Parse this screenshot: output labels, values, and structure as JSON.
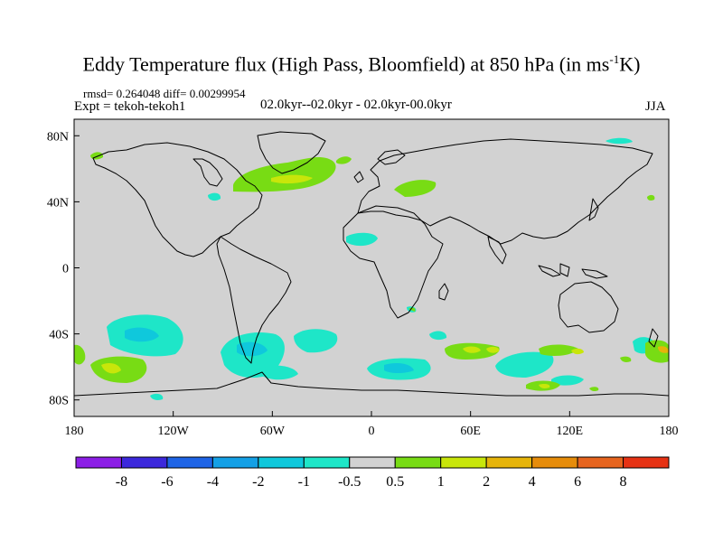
{
  "title": {
    "main": "Eddy Temperature flux (High Pass, Bloomfield) at 850 hPa (in ms",
    "sup": "-1",
    "tail": "K)"
  },
  "stats_line": "rmsd= 0.264048 diff= 0.00299954",
  "experiment": "Expt = tekoh-tekoh1",
  "period": "02.0kyr--02.0kyr - 02.0kyr-00.0kyr",
  "season": "JJA",
  "map": {
    "projection": "cylindrical-equidistant",
    "lon_range": [
      -180,
      180
    ],
    "lat_range": [
      -90,
      90
    ],
    "background": "#d2d2d2",
    "coastline_color": "#000000",
    "x_ticks": [
      {
        "value": -180,
        "label": "180"
      },
      {
        "value": -120,
        "label": "120W"
      },
      {
        "value": -60,
        "label": "60W"
      },
      {
        "value": 0,
        "label": "0"
      },
      {
        "value": 60,
        "label": "60E"
      },
      {
        "value": 120,
        "label": "120E"
      },
      {
        "value": 180,
        "label": "180"
      }
    ],
    "y_ticks": [
      {
        "value": 80,
        "label": "80N"
      },
      {
        "value": 40,
        "label": "40N"
      },
      {
        "value": 0,
        "label": "0"
      },
      {
        "value": -40,
        "label": "40S"
      },
      {
        "value": -80,
        "label": "80S"
      }
    ]
  },
  "colorbar": {
    "colors": [
      "#8c1ee6",
      "#3c28dc",
      "#1e64e6",
      "#14a0e6",
      "#0fc8dc",
      "#1ee6c8",
      "#d2d2d2",
      "#78dc14",
      "#c8e60a",
      "#e6b40a",
      "#e68c0a",
      "#e6641e",
      "#e63214"
    ],
    "labels": [
      "-8",
      "-6",
      "-4",
      "-2",
      "-1",
      "-0.5",
      "0.5",
      "1",
      "2",
      "4",
      "6",
      "8"
    ]
  }
}
